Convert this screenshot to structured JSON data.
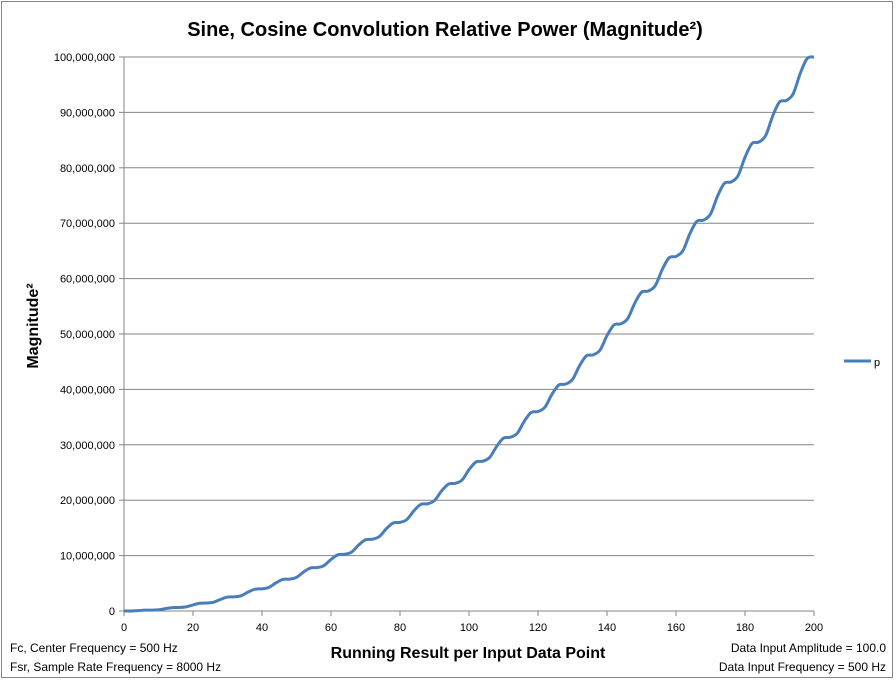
{
  "chart_data": {
    "type": "line",
    "title": "Sine, Cosine Convolution Relative Power (Magnitude²)",
    "xlabel": "Running Result per Input Data Point",
    "ylabel": "Magnitude²",
    "xlim": [
      0,
      200
    ],
    "ylim": [
      0,
      100000000
    ],
    "x_ticks": [
      "0",
      "20",
      "40",
      "60",
      "80",
      "100",
      "120",
      "140",
      "160",
      "180",
      "200"
    ],
    "y_ticks": [
      "0",
      "10,000,000",
      "20,000,000",
      "30,000,000",
      "40,000,000",
      "50,000,000",
      "60,000,000",
      "70,000,000",
      "80,000,000",
      "90,000,000",
      "100,000,000"
    ],
    "grid": "horizontal",
    "legend_position": "right",
    "series": [
      {
        "name": "p",
        "color": "#4a7ebb",
        "x_step": 2,
        "x_start": 0,
        "values": [
          0,
          4178,
          62500,
          148502,
          160000,
          215890,
          422500,
          616790,
          640000,
          747602,
          1102500,
          1405078,
          1440000,
          1599314,
          2102500,
          2513366,
          2560000,
          2771026,
          3422500,
          3941654,
          4000000,
          4262738,
          5062500,
          5689942,
          5760000,
          6074450,
          7022500,
          7758230,
          7840000,
          8206162,
          9302500,
          10146518,
          10240000,
          10657874,
          11902500,
          12854806,
          12960000,
          13429586,
          14822500,
          15883094,
          16000000,
          16521298,
          18062500,
          19231382,
          19360000,
          19933010,
          21622500,
          22899670,
          23040000,
          23664722,
          25502500,
          26887958,
          27040000,
          27716434,
          29702500,
          31196246,
          31360000,
          32088146,
          34222500,
          35824534,
          36000000,
          36779858,
          39062500,
          40772822,
          40960000,
          41791570,
          44222500,
          46041110,
          46240000,
          47123282,
          49702500,
          51629398,
          51840000,
          52774994,
          55502500,
          57537686,
          57760000,
          58746706,
          61622500,
          63765974,
          64000000,
          65038418,
          68062500,
          70314262,
          70560000,
          71650130,
          74822500,
          77182550,
          77440000,
          78581842,
          81902500,
          84370838,
          84640000,
          85833554,
          89302500,
          91879126,
          92160000,
          93405266,
          97022500,
          99707414,
          100000000
        ]
      }
    ]
  },
  "notes": {
    "left_1": "Fc, Center Frequency = 500 Hz",
    "left_2": "Fsr, Sample Rate Frequency = 8000  Hz",
    "right_1": "Data Input Amplitude = 100.0",
    "right_2": "Data Input Frequency = 500  Hz"
  }
}
